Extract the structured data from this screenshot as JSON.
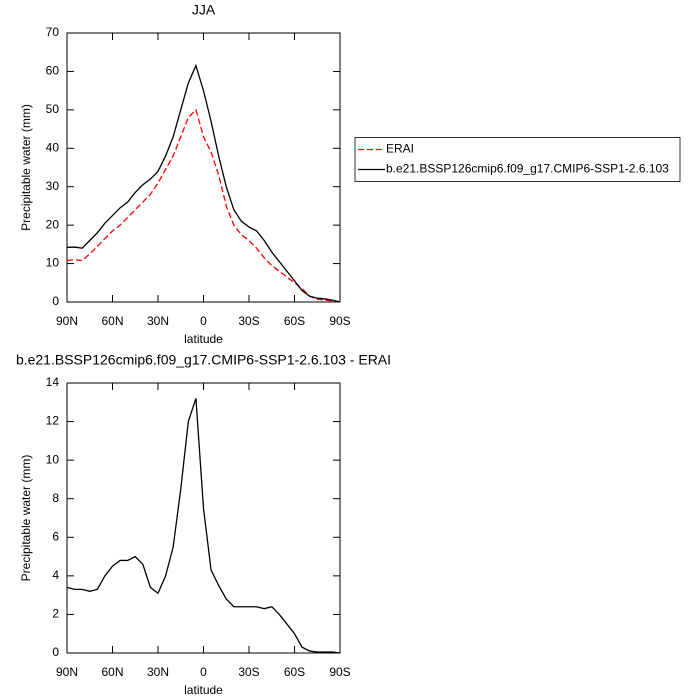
{
  "chart_data": [
    {
      "type": "line",
      "title": "JJA",
      "xlabel": "latitude",
      "ylabel": "Precipitable water (mm)",
      "x": [
        90,
        85,
        80,
        75,
        70,
        65,
        60,
        55,
        50,
        45,
        40,
        35,
        30,
        25,
        20,
        15,
        10,
        5,
        0,
        -5,
        -10,
        -15,
        -20,
        -25,
        -30,
        -35,
        -40,
        -45,
        -50,
        -55,
        -60,
        -65,
        -70,
        -75,
        -80,
        -85,
        -90
      ],
      "xlim": [
        90,
        -90
      ],
      "xticks": [
        {
          "value": 90,
          "label": "90N"
        },
        {
          "value": 60,
          "label": "60N"
        },
        {
          "value": 30,
          "label": "30N"
        },
        0,
        {
          "value": -30,
          "label": "30S"
        },
        {
          "value": -60,
          "label": "60S"
        },
        {
          "value": -90,
          "label": "90S"
        }
      ],
      "ylim": [
        0,
        70
      ],
      "yticks": [
        0,
        10,
        20,
        30,
        40,
        50,
        60,
        70
      ],
      "legend": "right",
      "series": [
        {
          "name": "ERAI",
          "color": "#ff0000",
          "dash": true,
          "values": [
            10.8,
            11,
            10.8,
            12.5,
            14.5,
            16.5,
            18.5,
            20,
            22,
            24,
            26,
            28,
            31,
            34.5,
            38,
            43,
            48,
            50,
            43,
            39,
            33,
            25,
            20,
            17.5,
            16,
            14,
            11.5,
            9.5,
            8,
            6.5,
            5,
            3.5,
            1.5,
            0.7,
            0.5,
            0.3,
            0
          ]
        },
        {
          "name": "b.e21.BSSP126cmip6.f09_g17.CMIP6-SSP1-2.6.103",
          "color": "#000000",
          "dash": false,
          "values": [
            14.2,
            14.3,
            14,
            16,
            18,
            20.5,
            22.5,
            24.5,
            26,
            28.5,
            30.5,
            32,
            34,
            38,
            43,
            50,
            57,
            61.5,
            55,
            47,
            38,
            30,
            24,
            21,
            19.5,
            18.5,
            16,
            13,
            10.5,
            8,
            5.5,
            3,
            1.5,
            1,
            0.8,
            0.5,
            0
          ]
        }
      ]
    },
    {
      "type": "line",
      "title": "b.e21.BSSP126cmip6.f09_g17.CMIP6-SSP1-2.6.103 - ERAI",
      "xlabel": "latitude",
      "ylabel": "Precipitable water (mm)",
      "x": [
        90,
        85,
        80,
        75,
        70,
        65,
        60,
        55,
        50,
        45,
        40,
        35,
        30,
        25,
        20,
        15,
        10,
        5,
        0,
        -5,
        -10,
        -15,
        -20,
        -25,
        -30,
        -35,
        -40,
        -45,
        -50,
        -55,
        -60,
        -65,
        -70,
        -75,
        -80,
        -85,
        -90
      ],
      "xlim": [
        90,
        -90
      ],
      "xticks": [
        {
          "value": 90,
          "label": "90N"
        },
        {
          "value": 60,
          "label": "60N"
        },
        {
          "value": 30,
          "label": "30N"
        },
        0,
        {
          "value": -30,
          "label": "30S"
        },
        {
          "value": -60,
          "label": "60S"
        },
        {
          "value": -90,
          "label": "90S"
        }
      ],
      "ylim": [
        0,
        14
      ],
      "yticks": [
        0,
        2,
        4,
        6,
        8,
        10,
        12,
        14
      ],
      "color": "#000000",
      "values": [
        3.4,
        3.3,
        3.3,
        3.2,
        3.3,
        4,
        4.5,
        4.8,
        4.8,
        5,
        4.6,
        3.4,
        3.1,
        4,
        5.5,
        8.5,
        12,
        13.2,
        7.5,
        4.3,
        3.5,
        2.8,
        2.4,
        2.4,
        2.4,
        2.4,
        2.3,
        2.4,
        2,
        1.5,
        1,
        0.3,
        0.1,
        0.05,
        0.05,
        0.05,
        0
      ]
    }
  ]
}
